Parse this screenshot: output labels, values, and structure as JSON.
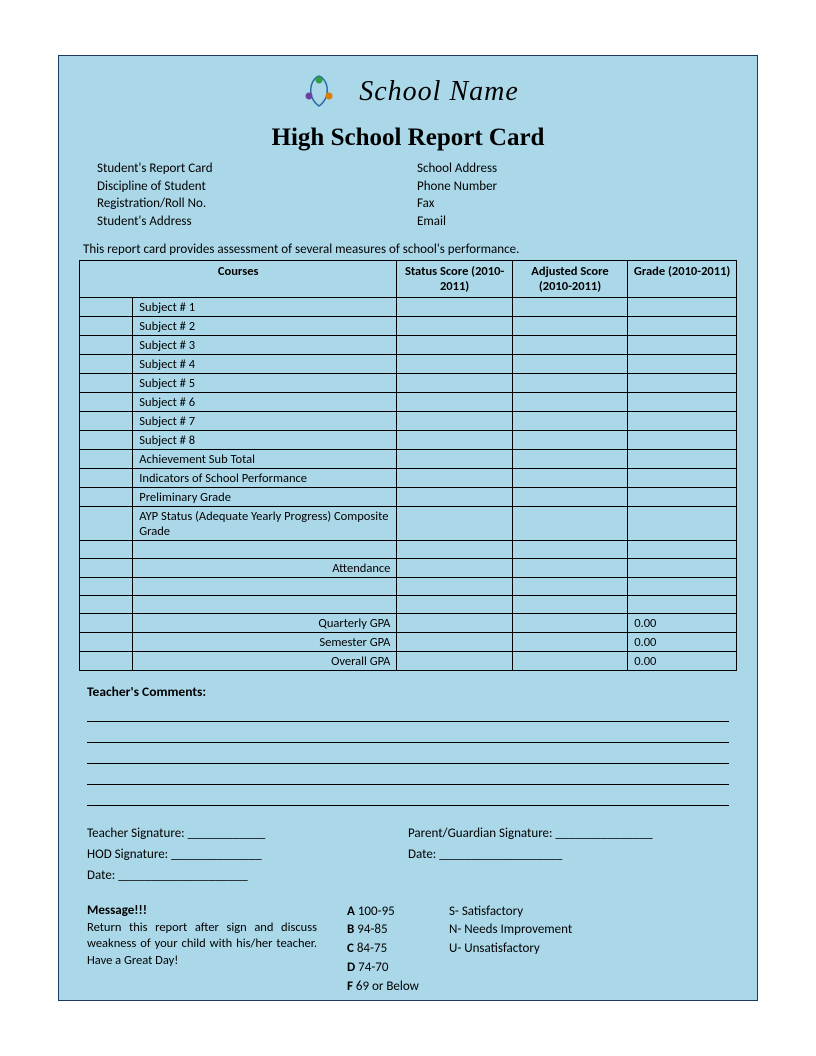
{
  "school_name": "School Name",
  "title": "High School Report Card",
  "info_left": {
    "l1": "Student's Report Card",
    "l2": "Discipline of Student",
    "l3": "Registration/Roll No.",
    "l4": "Student's Address"
  },
  "info_right": {
    "l1": "School Address",
    "l2": "Phone Number",
    "l3": "Fax",
    "l4": "Email"
  },
  "intro": "This report card provides assessment of several measures of school's performance.",
  "table": {
    "headers": {
      "courses": "Courses",
      "status": "Status Score (2010-2011)",
      "adjusted": "Adjusted Score (2010-2011)",
      "grade": "Grade (2010-2011)"
    },
    "subjects": [
      "Subject # 1",
      "Subject # 2",
      "Subject # 3",
      "Subject # 4",
      "Subject # 5",
      "Subject # 6",
      "Subject # 7",
      "Subject # 8"
    ],
    "extra_rows": [
      "Achievement Sub Total",
      "Indicators of School Performance",
      "Preliminary Grade",
      "AYP Status (Adequate Yearly Progress) Composite Grade"
    ],
    "attendance_label": "Attendance",
    "gpa": [
      {
        "label": "Quarterly GPA",
        "value": "0.00"
      },
      {
        "label": "Semester GPA",
        "value": "0.00"
      },
      {
        "label": "Overall GPA",
        "value": "0.00"
      }
    ]
  },
  "comments_title": "Teacher's Comments:",
  "signatures": {
    "teacher": "Teacher Signature: ____________",
    "hod": "HOD Signature: ______________",
    "date1": "Date: ____________________",
    "parent": "Parent/Guardian Signature: _______________",
    "date2": "Date: ___________________"
  },
  "message": {
    "title": "Message!!!",
    "body": "Return this report after sign and discuss weakness of your child with his/her teacher.  Have a Great Day!"
  },
  "legend": {
    "col1": [
      {
        "k": "A",
        "v": "100-95"
      },
      {
        "k": "B",
        "v": "94-85"
      },
      {
        "k": "C",
        "v": "84-75"
      },
      {
        "k": "D",
        "v": "74-70"
      },
      {
        "k": "F",
        "v": " 69 or Below"
      }
    ],
    "col2": [
      {
        "k": "S-",
        "v": " Satisfactory"
      },
      {
        "k": "N-",
        "v": " Needs Improvement"
      },
      {
        "k": "U-",
        "v": " Unsatisfactory"
      }
    ]
  },
  "colors": {
    "bg": "#abd8e8",
    "border": "#1f3864"
  }
}
